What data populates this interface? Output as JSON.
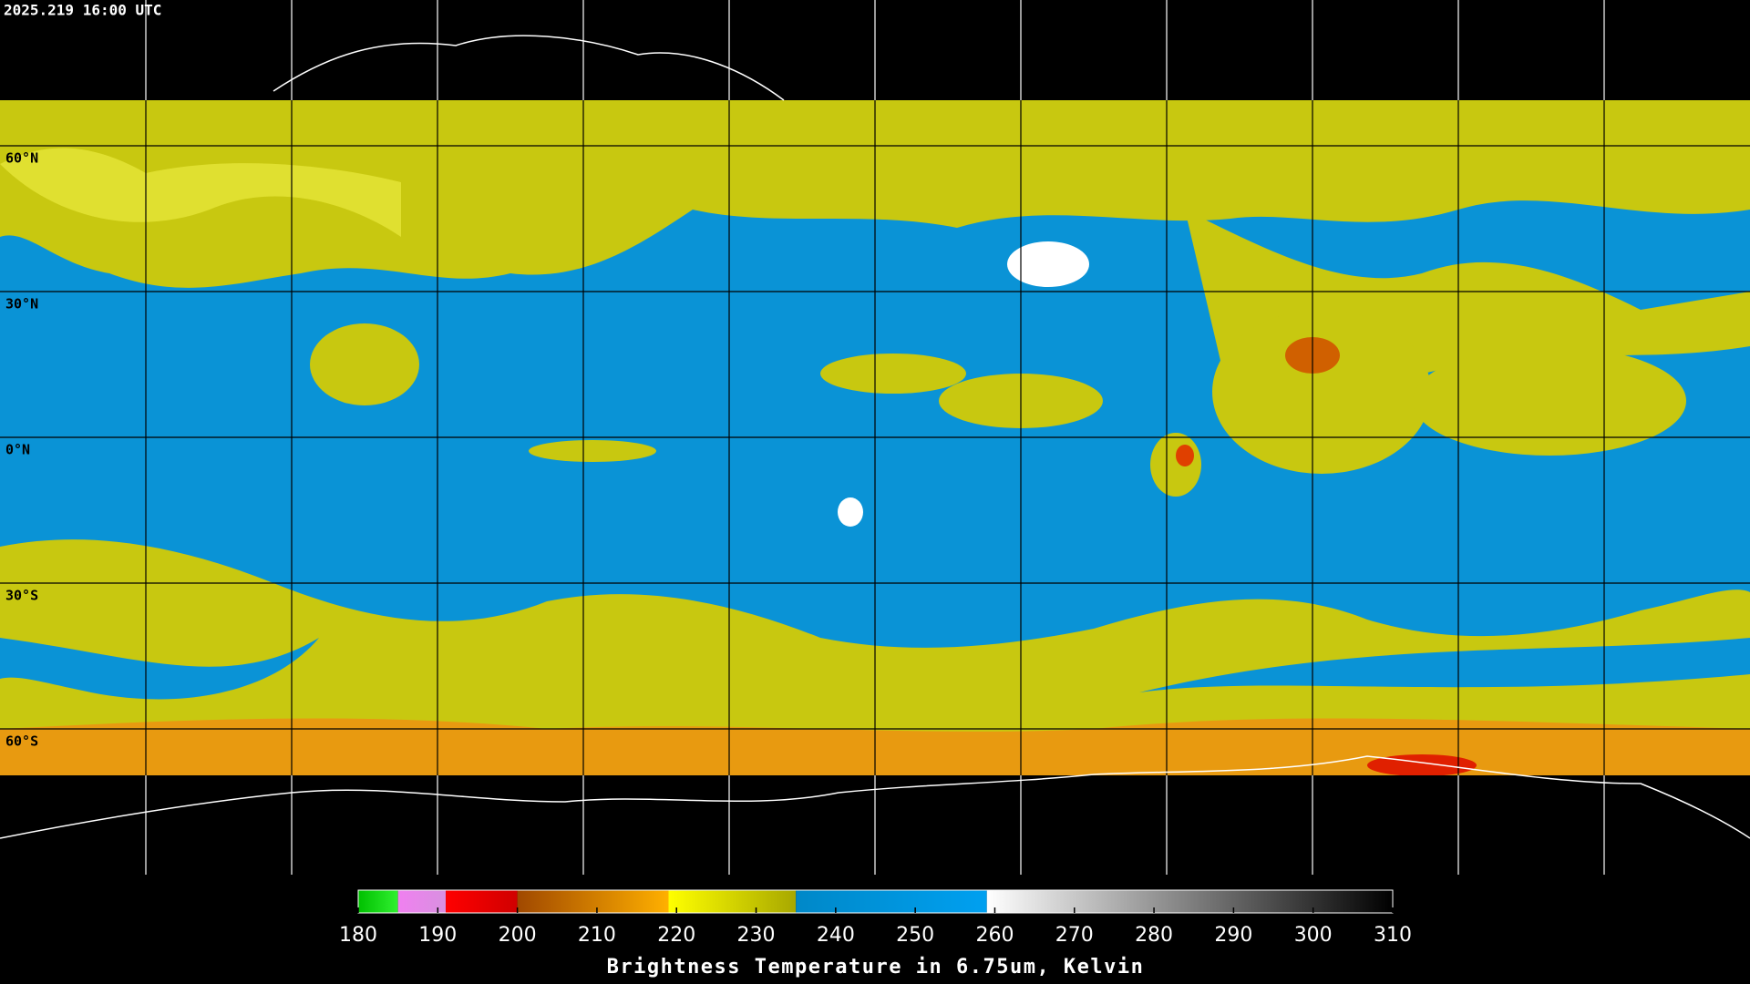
{
  "timestamp": "2025.219 16:00 UTC",
  "latitudes": [
    {
      "value": 60,
      "label": "60°N"
    },
    {
      "value": 30,
      "label": "30°N"
    },
    {
      "value": 0,
      "label": "0°N"
    },
    {
      "value": -30,
      "label": "30°S"
    },
    {
      "value": -60,
      "label": "60°S"
    }
  ],
  "colorbar": {
    "title": "Brightness Temperature in 6.75um, Kelvin",
    "range": [
      180,
      310
    ],
    "ticks": [
      180,
      190,
      200,
      210,
      220,
      230,
      240,
      250,
      260,
      270,
      280,
      290,
      300,
      310
    ],
    "stops": [
      {
        "from": 180,
        "to": 185,
        "colors": [
          "#00c000",
          "#30f030"
        ]
      },
      {
        "from": 185,
        "to": 191,
        "colors": [
          "#f080f0",
          "#d890e0"
        ]
      },
      {
        "from": 191,
        "to": 200,
        "colors": [
          "#ff0000",
          "#d00000"
        ]
      },
      {
        "from": 200,
        "to": 219,
        "colors": [
          "#a04800",
          "#ffb000"
        ]
      },
      {
        "from": 219,
        "to": 235,
        "colors": [
          "#ffff00",
          "#a8a800"
        ]
      },
      {
        "from": 235,
        "to": 259,
        "colors": [
          "#0088c8",
          "#00a0f0"
        ]
      },
      {
        "from": 259,
        "to": 310,
        "colors": [
          "#ffffff",
          "#000000"
        ]
      }
    ]
  }
}
